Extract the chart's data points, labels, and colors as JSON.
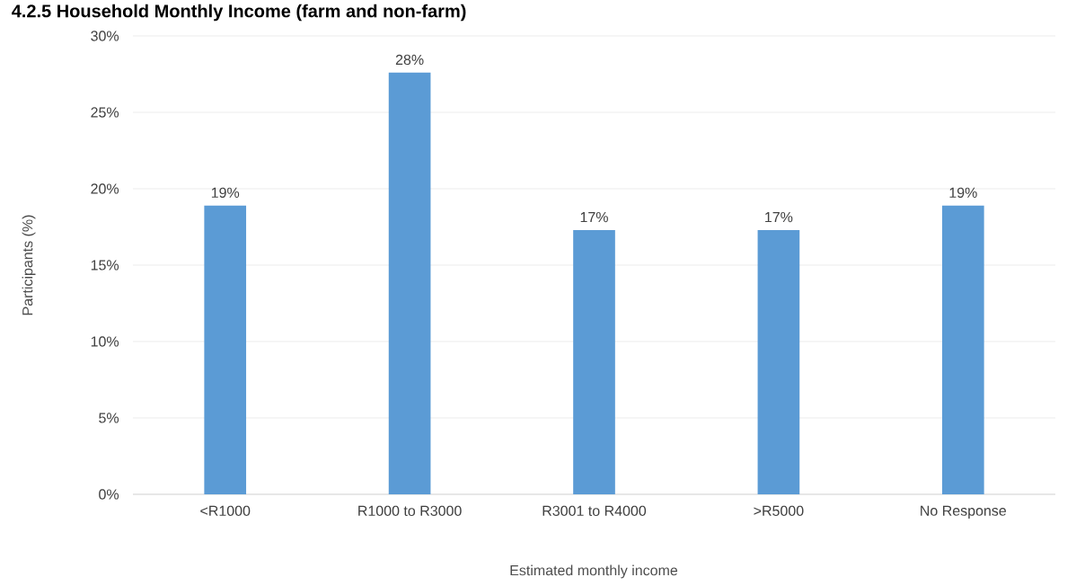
{
  "chart_data": {
    "type": "bar",
    "title": "4.2.5 Household Monthly Income (farm and non-farm)",
    "xlabel": "Estimated monthly income",
    "ylabel": "Participants (%)",
    "categories": [
      "<R1000",
      "R1000 to R3000",
      "R3001 to R4000",
      ">R5000",
      "No Response"
    ],
    "values": [
      18.9,
      27.6,
      17.3,
      17.3,
      18.9
    ],
    "value_labels": [
      "19%",
      "28%",
      "17%",
      "17%",
      "19%"
    ],
    "color": "#5b9bd5",
    "ylim": [
      0,
      30
    ],
    "yticks": [
      {
        "value": 0,
        "label": "0%"
      },
      {
        "value": 5,
        "label": "5%"
      },
      {
        "value": 10,
        "label": "10%"
      },
      {
        "value": 15,
        "label": "15%"
      },
      {
        "value": 20,
        "label": "20%"
      },
      {
        "value": 25,
        "label": "25%"
      },
      {
        "value": 30,
        "label": "30%"
      }
    ],
    "grid": "y"
  }
}
